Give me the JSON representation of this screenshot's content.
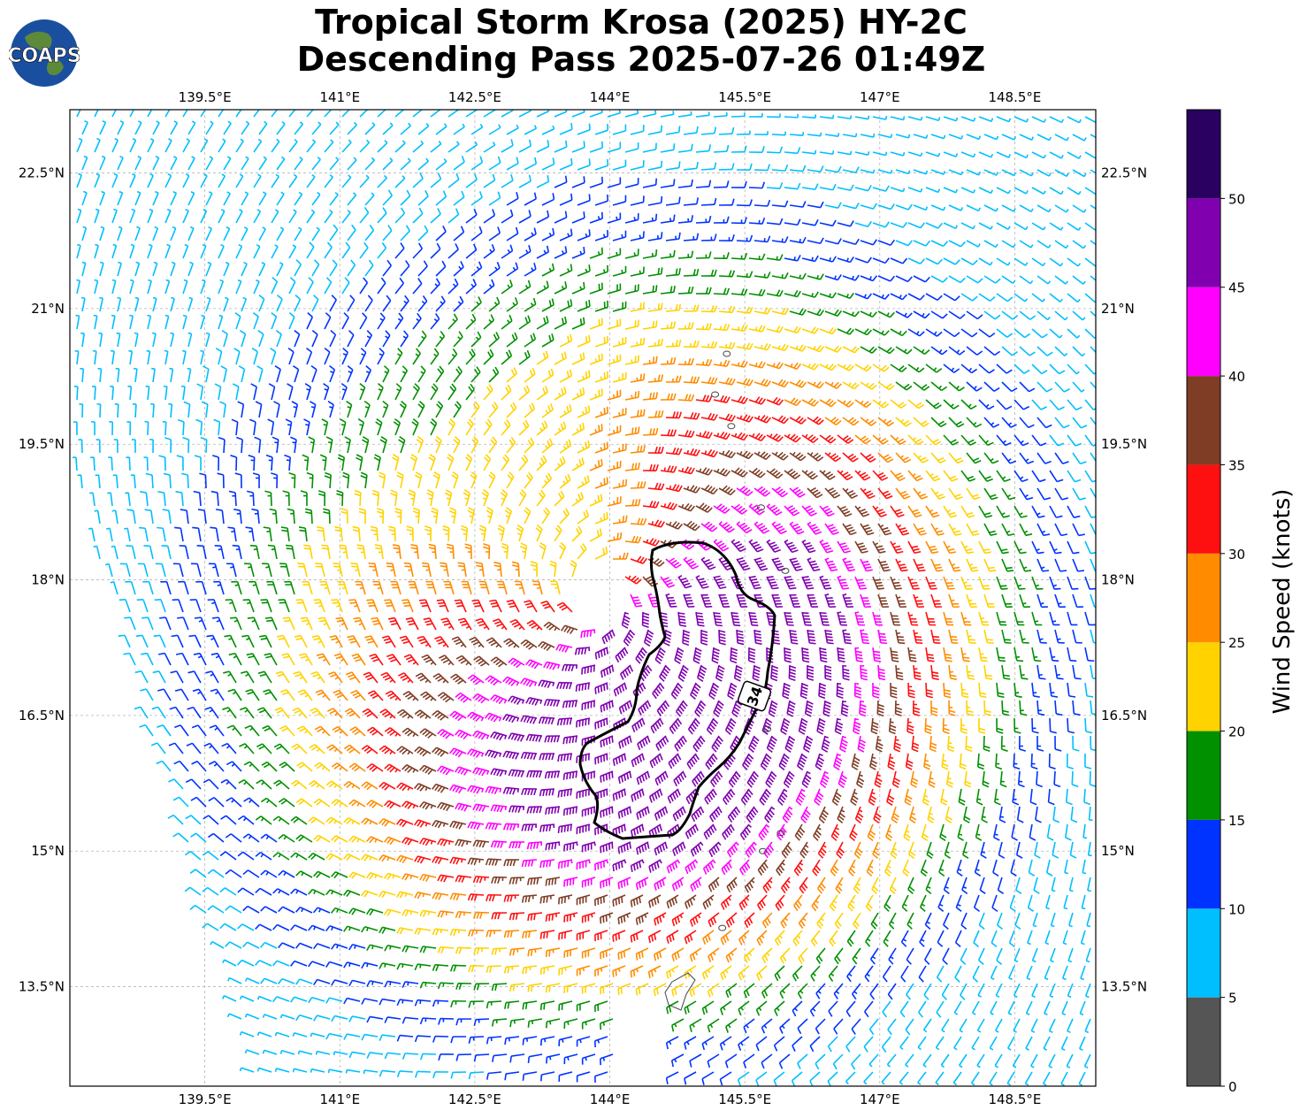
{
  "title": {
    "line1": "Tropical Storm Krosa (2025) HY-2C",
    "line2": "Descending Pass 2025-07-26 01:49Z"
  },
  "logo": {
    "text": "COAPS"
  },
  "map": {
    "lon_ticks": [
      "139.5°E",
      "141°E",
      "142.5°E",
      "144°E",
      "145.5°E",
      "147°E",
      "148.5°E"
    ],
    "lat_ticks": [
      "22.5°N",
      "21°N",
      "19.5°N",
      "18°N",
      "16.5°N",
      "15°N",
      "13.5°N"
    ],
    "lon_range": [
      138.0,
      149.4
    ],
    "lat_range": [
      12.4,
      23.2
    ],
    "storm_center": {
      "lon": 144.0,
      "lat": 18.0
    },
    "contour_label": "34",
    "contour_kt": 34
  },
  "colorbar": {
    "title": "Wind Speed (knots)",
    "tick_labels": [
      "0",
      "5",
      "10",
      "15",
      "20",
      "25",
      "30",
      "35",
      "40",
      "45",
      "50"
    ],
    "bins": [
      {
        "min": 0,
        "max": 5,
        "color": "#555555"
      },
      {
        "min": 5,
        "max": 10,
        "color": "#00bfff"
      },
      {
        "min": 10,
        "max": 15,
        "color": "#0033ff"
      },
      {
        "min": 15,
        "max": 20,
        "color": "#009000"
      },
      {
        "min": 20,
        "max": 25,
        "color": "#ffd200"
      },
      {
        "min": 25,
        "max": 30,
        "color": "#ff8c00"
      },
      {
        "min": 30,
        "max": 35,
        "color": "#ff1010"
      },
      {
        "min": 35,
        "max": 40,
        "color": "#7f3d25"
      },
      {
        "min": 40,
        "max": 45,
        "color": "#ff00ff"
      },
      {
        "min": 45,
        "max": 50,
        "color": "#8000b0"
      },
      {
        "min": 50,
        "max": 55,
        "color": "#2a0060"
      }
    ]
  }
}
